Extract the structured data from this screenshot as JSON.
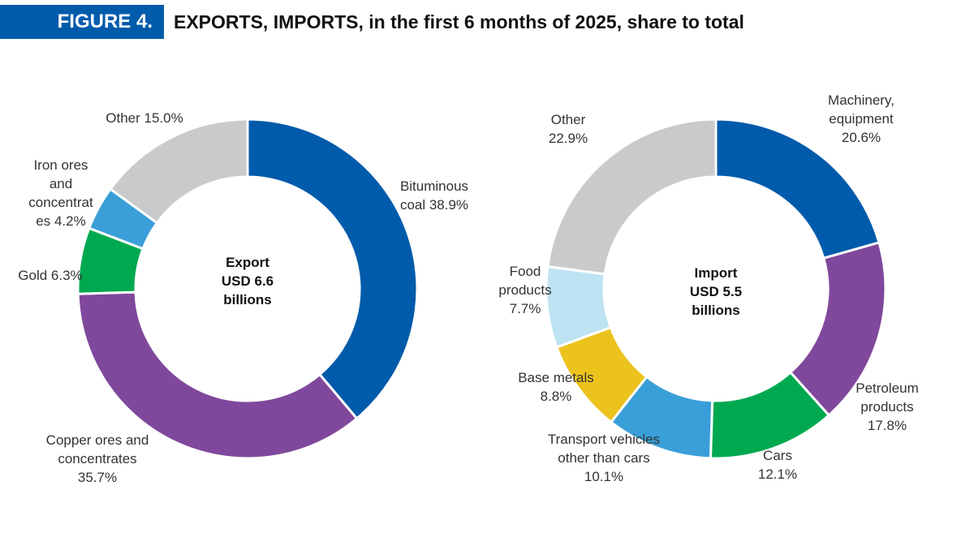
{
  "figure": {
    "label": "FIGURE 4.",
    "title": "EXPORTS, IMPORTS, in the first 6 months of 2025, share to total"
  },
  "chart_data": [
    {
      "type": "pie",
      "center_label": [
        "Export",
        "USD 6.6",
        "billions"
      ],
      "unit": "%",
      "slices": [
        {
          "name": "Bituminous coal",
          "value": 38.9,
          "color": "#005bab",
          "label": [
            "Bituminous",
            "coal 38.9%"
          ]
        },
        {
          "name": "Copper ores and concentrates",
          "value": 35.7,
          "color": "#80489c",
          "label": [
            "Copper ores and",
            "concentrates",
            "35.7%"
          ]
        },
        {
          "name": "Gold",
          "value": 6.3,
          "color": "#00a94f",
          "label": [
            "Gold 6.3%"
          ]
        },
        {
          "name": "Iron ores and concentrates",
          "value": 4.2,
          "color": "#3a9fd8",
          "label": [
            "Iron ores",
            "and",
            "concentrat",
            "es 4.2%"
          ]
        },
        {
          "name": "Other",
          "value": 15.0,
          "color": "#c8cacb",
          "label": [
            "Other 15.0%"
          ]
        }
      ]
    },
    {
      "type": "pie",
      "center_label": [
        "Import",
        "USD 5.5",
        "billions"
      ],
      "unit": "%",
      "slices": [
        {
          "name": "Machinery, equipment",
          "value": 20.6,
          "color": "#005bab",
          "label": [
            "Machinery,",
            "equipment",
            "20.6%"
          ]
        },
        {
          "name": "Petroleum products",
          "value": 17.8,
          "color": "#80489c",
          "label": [
            "Petroleum",
            "products",
            "17.8%"
          ]
        },
        {
          "name": "Cars",
          "value": 12.1,
          "color": "#00a94f",
          "label": [
            "Cars",
            "12.1%"
          ]
        },
        {
          "name": "Transport vehicles other than cars",
          "value": 10.1,
          "color": "#3a9fd8",
          "label": [
            "Transport vehicles",
            "other than cars",
            "10.1%"
          ]
        },
        {
          "name": "Base metals",
          "value": 8.8,
          "color": "#ecc31d",
          "label": [
            "Base metals",
            "8.8%"
          ]
        },
        {
          "name": "Food products",
          "value": 7.7,
          "color": "#bde3f3",
          "label": [
            "Food",
            "products",
            "7.7%"
          ]
        },
        {
          "name": "Other",
          "value": 22.9,
          "color": "#c8cacb",
          "label": [
            "Other",
            "22.9%"
          ]
        }
      ]
    }
  ]
}
